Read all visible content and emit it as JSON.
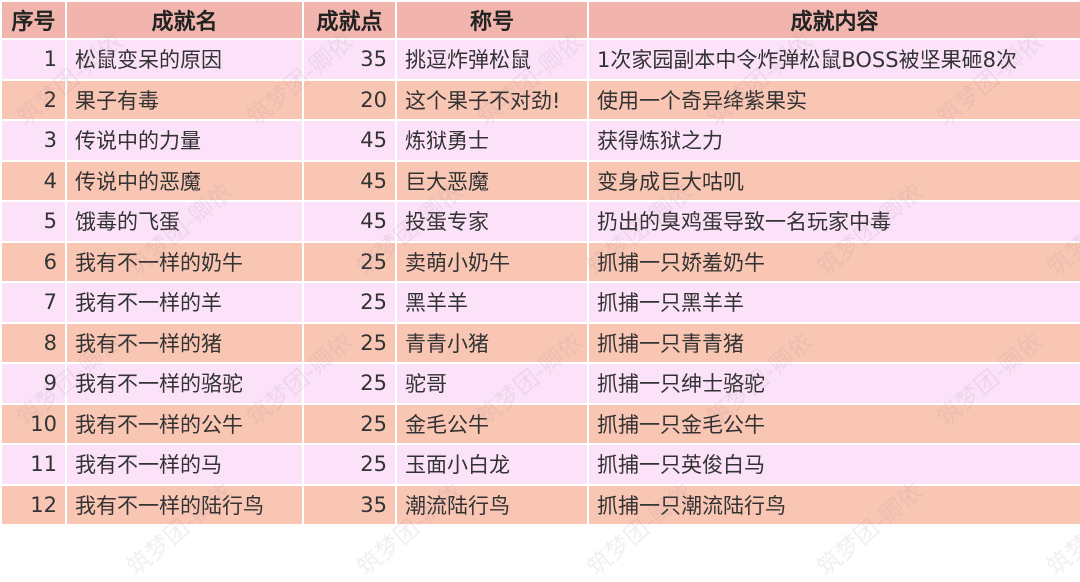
{
  "headers": [
    "序号",
    "成就名",
    "成就点",
    "称号",
    "成就内容"
  ],
  "rows": [
    [
      "1",
      "松鼠变呆的原因",
      "35",
      "挑逗炸弹松鼠",
      "1次家园副本中令炸弹松鼠BOSS被坚果砸8次"
    ],
    [
      "2",
      "果子有毒",
      "20",
      "这个果子不对劲!",
      "使用一个奇异绛紫果实"
    ],
    [
      "3",
      "传说中的力量",
      "45",
      "炼狱勇士",
      "获得炼狱之力"
    ],
    [
      "4",
      "传说中的恶魔",
      "45",
      "巨大恶魔",
      "变身成巨大咕叽"
    ],
    [
      "5",
      "饿毒的飞蛋",
      "45",
      "投蛋专家",
      "扔出的臭鸡蛋导致一名玩家中毒"
    ],
    [
      "6",
      "我有不一样的奶牛",
      "25",
      "卖萌小奶牛",
      "抓捕一只娇羞奶牛"
    ],
    [
      "7",
      "我有不一样的羊",
      "25",
      "黑羊羊",
      "抓捕一只黑羊羊"
    ],
    [
      "8",
      "我有不一样的猪",
      "25",
      "青青小猪",
      "抓捕一只青青猪"
    ],
    [
      "9",
      "我有不一样的骆驼",
      "25",
      "驼哥",
      "抓捕一只绅士骆驼"
    ],
    [
      "10",
      "我有不一样的公牛",
      "25",
      "金毛公牛",
      "抓捕一只金毛公牛"
    ],
    [
      "11",
      "我有不一样的马",
      "25",
      "玉面小白龙",
      "抓捕一只英俊白马"
    ],
    [
      "12",
      "我有不一样的陆行鸟",
      "35",
      "潮流陆行鸟",
      "抓捕一只潮流陆行鸟"
    ]
  ],
  "watermark": "筑梦团-卿依",
  "colors": {
    "header": "#f1b5ae",
    "row_odd": "#fbe2f9",
    "row_even": "#f9c6b4"
  }
}
